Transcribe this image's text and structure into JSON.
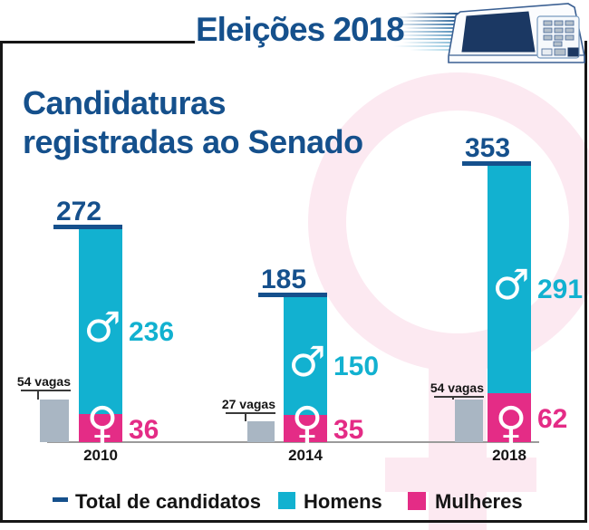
{
  "header": {
    "title": "Eleições 2018"
  },
  "heading": {
    "line1": "Candidaturas",
    "line2": "registradas ao Senado"
  },
  "icons": {
    "male": "♂",
    "female": "♀",
    "voting_machine": "urna-eletronica"
  },
  "colors": {
    "total": "#15508c",
    "men": "#12b1d0",
    "women": "#e42c86",
    "seats": "#a9b6c3",
    "watermark": "#fce9f1",
    "frame": "#161616"
  },
  "legend": {
    "total": "Total de candidatos",
    "men": "Homens",
    "women": "Mulheres"
  },
  "chart_data": {
    "type": "bar",
    "stacked": true,
    "title": "Candidaturas registradas ao Senado",
    "categories": [
      "2010",
      "2014",
      "2018"
    ],
    "series": [
      {
        "name": "Homens",
        "color": "#12b1d0",
        "values": [
          236,
          150,
          291
        ]
      },
      {
        "name": "Mulheres",
        "color": "#e42c86",
        "values": [
          36,
          35,
          62
        ]
      }
    ],
    "totals": [
      272,
      185,
      353
    ],
    "seats": {
      "values": [
        54,
        27,
        54
      ],
      "labels": [
        "54 vagas",
        "27 vagas",
        "54 vagas"
      ]
    },
    "legend_position": "bottom",
    "grid": false,
    "ylim": [
      0,
      380
    ]
  }
}
